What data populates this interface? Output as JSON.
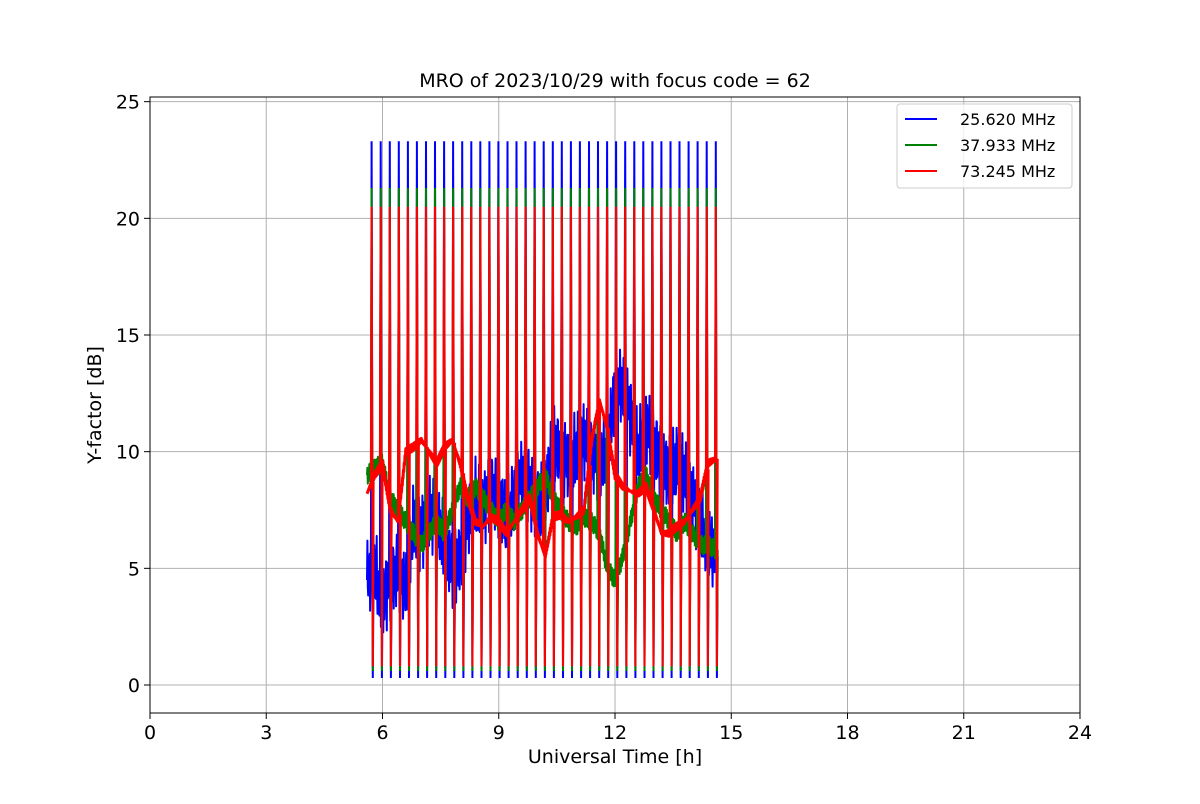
{
  "chart_data": {
    "type": "line",
    "title": "MRO of 2023/10/29 with focus code = 62",
    "xlabel": "Universal Time [h]",
    "ylabel": "Y-factor [dB]",
    "xlim": [
      0,
      24
    ],
    "ylim": [
      -1.2,
      25.2
    ],
    "xticks": [
      0,
      3,
      6,
      9,
      12,
      15,
      18,
      21,
      24
    ],
    "yticks": [
      0,
      5,
      10,
      15,
      20,
      25
    ],
    "grid": true,
    "legend_position": "top-right",
    "calibration_spikes": {
      "start_h": 5.72,
      "end_h": 14.6,
      "count": 39
    },
    "series": [
      {
        "name": "25.620 MHz",
        "color": "#0000ff",
        "spike_top": 23.3,
        "spike_bottom": 0.3,
        "x": [
          5.6,
          5.8,
          6.0,
          6.2,
          6.4,
          6.6,
          6.8,
          7.0,
          7.2,
          7.4,
          7.6,
          7.8,
          8.0,
          8.2,
          8.4,
          8.6,
          8.8,
          9.0,
          9.2,
          9.4,
          9.6,
          9.8,
          10.0,
          10.2,
          10.4,
          10.6,
          10.8,
          11.0,
          11.2,
          11.4,
          11.6,
          11.8,
          12.0,
          12.2,
          12.4,
          12.6,
          12.8,
          13.0,
          13.2,
          13.4,
          13.6,
          13.8,
          14.0,
          14.2,
          14.4,
          14.6
        ],
        "y": [
          4.5,
          5.0,
          3.5,
          4.5,
          5.0,
          4.0,
          7.0,
          6.5,
          7.5,
          7.0,
          6.0,
          5.0,
          5.5,
          7.0,
          8.0,
          7.5,
          8.5,
          8.0,
          7.0,
          8.0,
          9.0,
          8.5,
          7.5,
          8.0,
          10.5,
          10.0,
          9.5,
          10.0,
          10.5,
          10.0,
          9.5,
          10.0,
          12.5,
          13.0,
          11.5,
          10.0,
          11.0,
          10.5,
          9.5,
          9.0,
          9.5,
          9.0,
          8.0,
          7.0,
          6.0,
          5.5
        ]
      },
      {
        "name": "37.933 MHz",
        "color": "#008000",
        "spike_top": 21.3,
        "spike_bottom": 0.6,
        "x": [
          5.6,
          5.8,
          6.0,
          6.2,
          6.4,
          6.6,
          6.8,
          7.0,
          7.2,
          7.4,
          7.6,
          7.8,
          8.0,
          8.2,
          8.4,
          8.6,
          8.8,
          9.0,
          9.2,
          9.4,
          9.6,
          9.8,
          10.0,
          10.2,
          10.4,
          10.6,
          10.8,
          11.0,
          11.2,
          11.4,
          11.6,
          11.8,
          12.0,
          12.2,
          12.4,
          12.6,
          12.8,
          13.0,
          13.2,
          13.4,
          13.6,
          13.8,
          14.0,
          14.2,
          14.4,
          14.6
        ],
        "y": [
          9.0,
          9.3,
          9.5,
          8.0,
          7.5,
          7.0,
          6.5,
          6.0,
          6.5,
          7.0,
          6.5,
          7.5,
          8.5,
          8.0,
          8.5,
          8.0,
          7.5,
          7.0,
          7.5,
          7.0,
          7.5,
          8.0,
          8.5,
          9.0,
          8.0,
          7.5,
          7.0,
          6.8,
          7.2,
          7.0,
          6.5,
          5.0,
          4.5,
          5.5,
          7.0,
          8.5,
          9.0,
          8.0,
          7.5,
          7.0,
          6.5,
          7.0,
          6.5,
          6.0,
          6.0,
          5.8
        ]
      },
      {
        "name": "73.245 MHz",
        "color": "#ff0000",
        "spike_top": 20.5,
        "spike_bottom": 0.8,
        "x": [
          5.6,
          5.8,
          6.0,
          6.2,
          6.4,
          6.6,
          6.8,
          7.0,
          7.2,
          7.4,
          7.6,
          7.8,
          8.0,
          8.2,
          8.4,
          8.6,
          8.8,
          9.0,
          9.2,
          9.4,
          9.6,
          9.8,
          10.0,
          10.2,
          10.4,
          10.6,
          10.8,
          11.0,
          11.2,
          11.4,
          11.6,
          11.8,
          12.0,
          12.2,
          12.4,
          12.6,
          12.8,
          13.0,
          13.2,
          13.4,
          13.6,
          13.8,
          14.0,
          14.2,
          14.4,
          14.6
        ],
        "y": [
          8.2,
          9.0,
          9.5,
          7.5,
          7.0,
          10.0,
          10.2,
          10.5,
          10.0,
          9.5,
          10.2,
          10.5,
          9.5,
          8.0,
          7.0,
          6.8,
          7.2,
          7.0,
          6.5,
          7.0,
          7.5,
          8.0,
          6.5,
          5.5,
          7.2,
          7.3,
          7.0,
          7.2,
          7.5,
          10.5,
          12.2,
          11.0,
          9.0,
          8.5,
          8.3,
          8.2,
          8.5,
          7.5,
          6.5,
          6.5,
          6.8,
          7.0,
          7.5,
          8.0,
          9.5,
          9.7
        ]
      }
    ]
  }
}
